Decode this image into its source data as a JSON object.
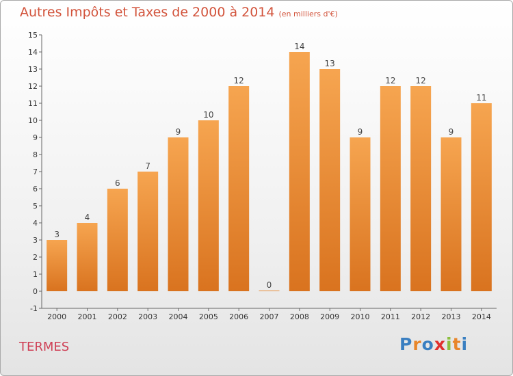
{
  "title": "Autres Impôts et Taxes de 2000 à 2014",
  "unit_label": "(en milliers d'€)",
  "commune": "TERMES",
  "logo": "Proxiti",
  "colors": {
    "bar_top": "#f6a550",
    "bar_bottom": "#d9731f",
    "title": "#d2533b",
    "commune": "#cf3f55"
  },
  "chart_data": {
    "type": "bar",
    "categories": [
      "2000",
      "2001",
      "2002",
      "2003",
      "2004",
      "2005",
      "2006",
      "2007",
      "2008",
      "2009",
      "2010",
      "2011",
      "2012",
      "2013",
      "2014"
    ],
    "values": [
      3,
      4,
      6,
      7,
      9,
      10,
      12,
      0,
      14,
      13,
      9,
      12,
      12,
      9,
      11
    ],
    "title": "Autres Impôts et Taxes de 2000 à 2014",
    "ylim": [
      -1,
      15
    ],
    "yticks": [
      -1,
      0,
      1,
      2,
      3,
      4,
      5,
      6,
      7,
      8,
      9,
      10,
      11,
      12,
      13,
      14,
      15
    ],
    "grid": false
  }
}
